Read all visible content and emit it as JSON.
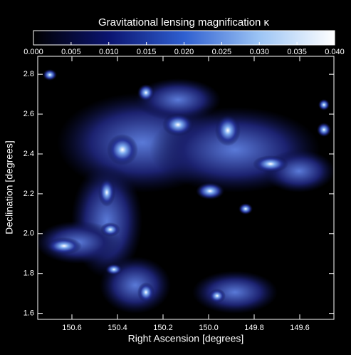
{
  "chart_data": {
    "type": "heatmap",
    "title": "Gravitational lensing magnification κ",
    "xlabel": "Right Ascension [degrees]",
    "ylabel": "Declination [degrees]",
    "xlim": [
      150.75,
      149.45
    ],
    "ylim": [
      1.57,
      2.89
    ],
    "xticks": [
      150.6,
      150.4,
      150.2,
      {
        "value": 150.0,
        "label": "150.0"
      },
      149.8,
      149.6
    ],
    "yticks": [
      1.6,
      1.8,
      {
        "value": 2.0,
        "label": "2.0"
      },
      2.2,
      2.4,
      2.6,
      2.8
    ],
    "clim": [
      0,
      0.04
    ],
    "cticks": [
      {
        "value": 0,
        "label": "0.000"
      },
      {
        "value": 0.005,
        "label": "0.005"
      },
      {
        "value": 0.01,
        "label": "0.010"
      },
      {
        "value": 0.015,
        "label": "0.015"
      },
      {
        "value": 0.02,
        "label": "0.020"
      },
      {
        "value": 0.025,
        "label": "0.025"
      },
      {
        "value": 0.03,
        "label": "0.030"
      },
      {
        "value": 0.035,
        "label": "0.035"
      },
      {
        "value": 0.04,
        "label": "0.040"
      }
    ],
    "colormap": [
      "#000000",
      "#0b1470",
      "#2f5fd0",
      "#9cc4f4",
      "#ffffff"
    ]
  }
}
